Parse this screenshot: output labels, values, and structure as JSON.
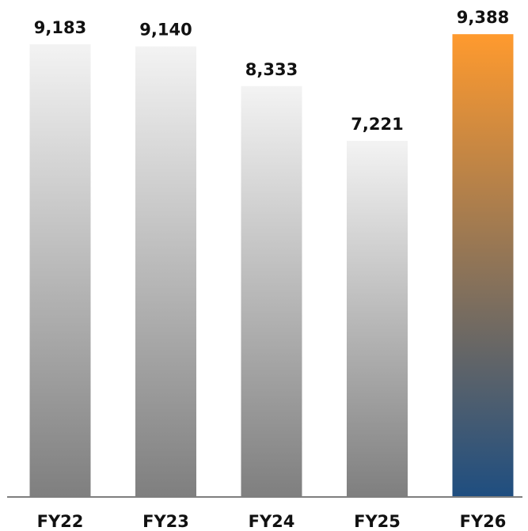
{
  "chart_data": {
    "type": "bar",
    "categories": [
      "FY22",
      "FY23",
      "FY24",
      "FY25",
      "FY26"
    ],
    "values": [
      9183,
      9140,
      8333,
      7221,
      9388
    ],
    "value_labels": [
      "9,183",
      "9,140",
      "8,333",
      "7,221",
      "9,388"
    ],
    "highlight_index": 4,
    "ylim": [
      0,
      9600
    ],
    "grid": false,
    "legend": "none",
    "colors": {
      "bar_top": "#f3f3f3",
      "bar_bottom": "#7f7f7f",
      "highlight_top": "#ff9a2e",
      "highlight_bottom": "#1f4e80",
      "baseline": "#7f7f7f"
    }
  }
}
